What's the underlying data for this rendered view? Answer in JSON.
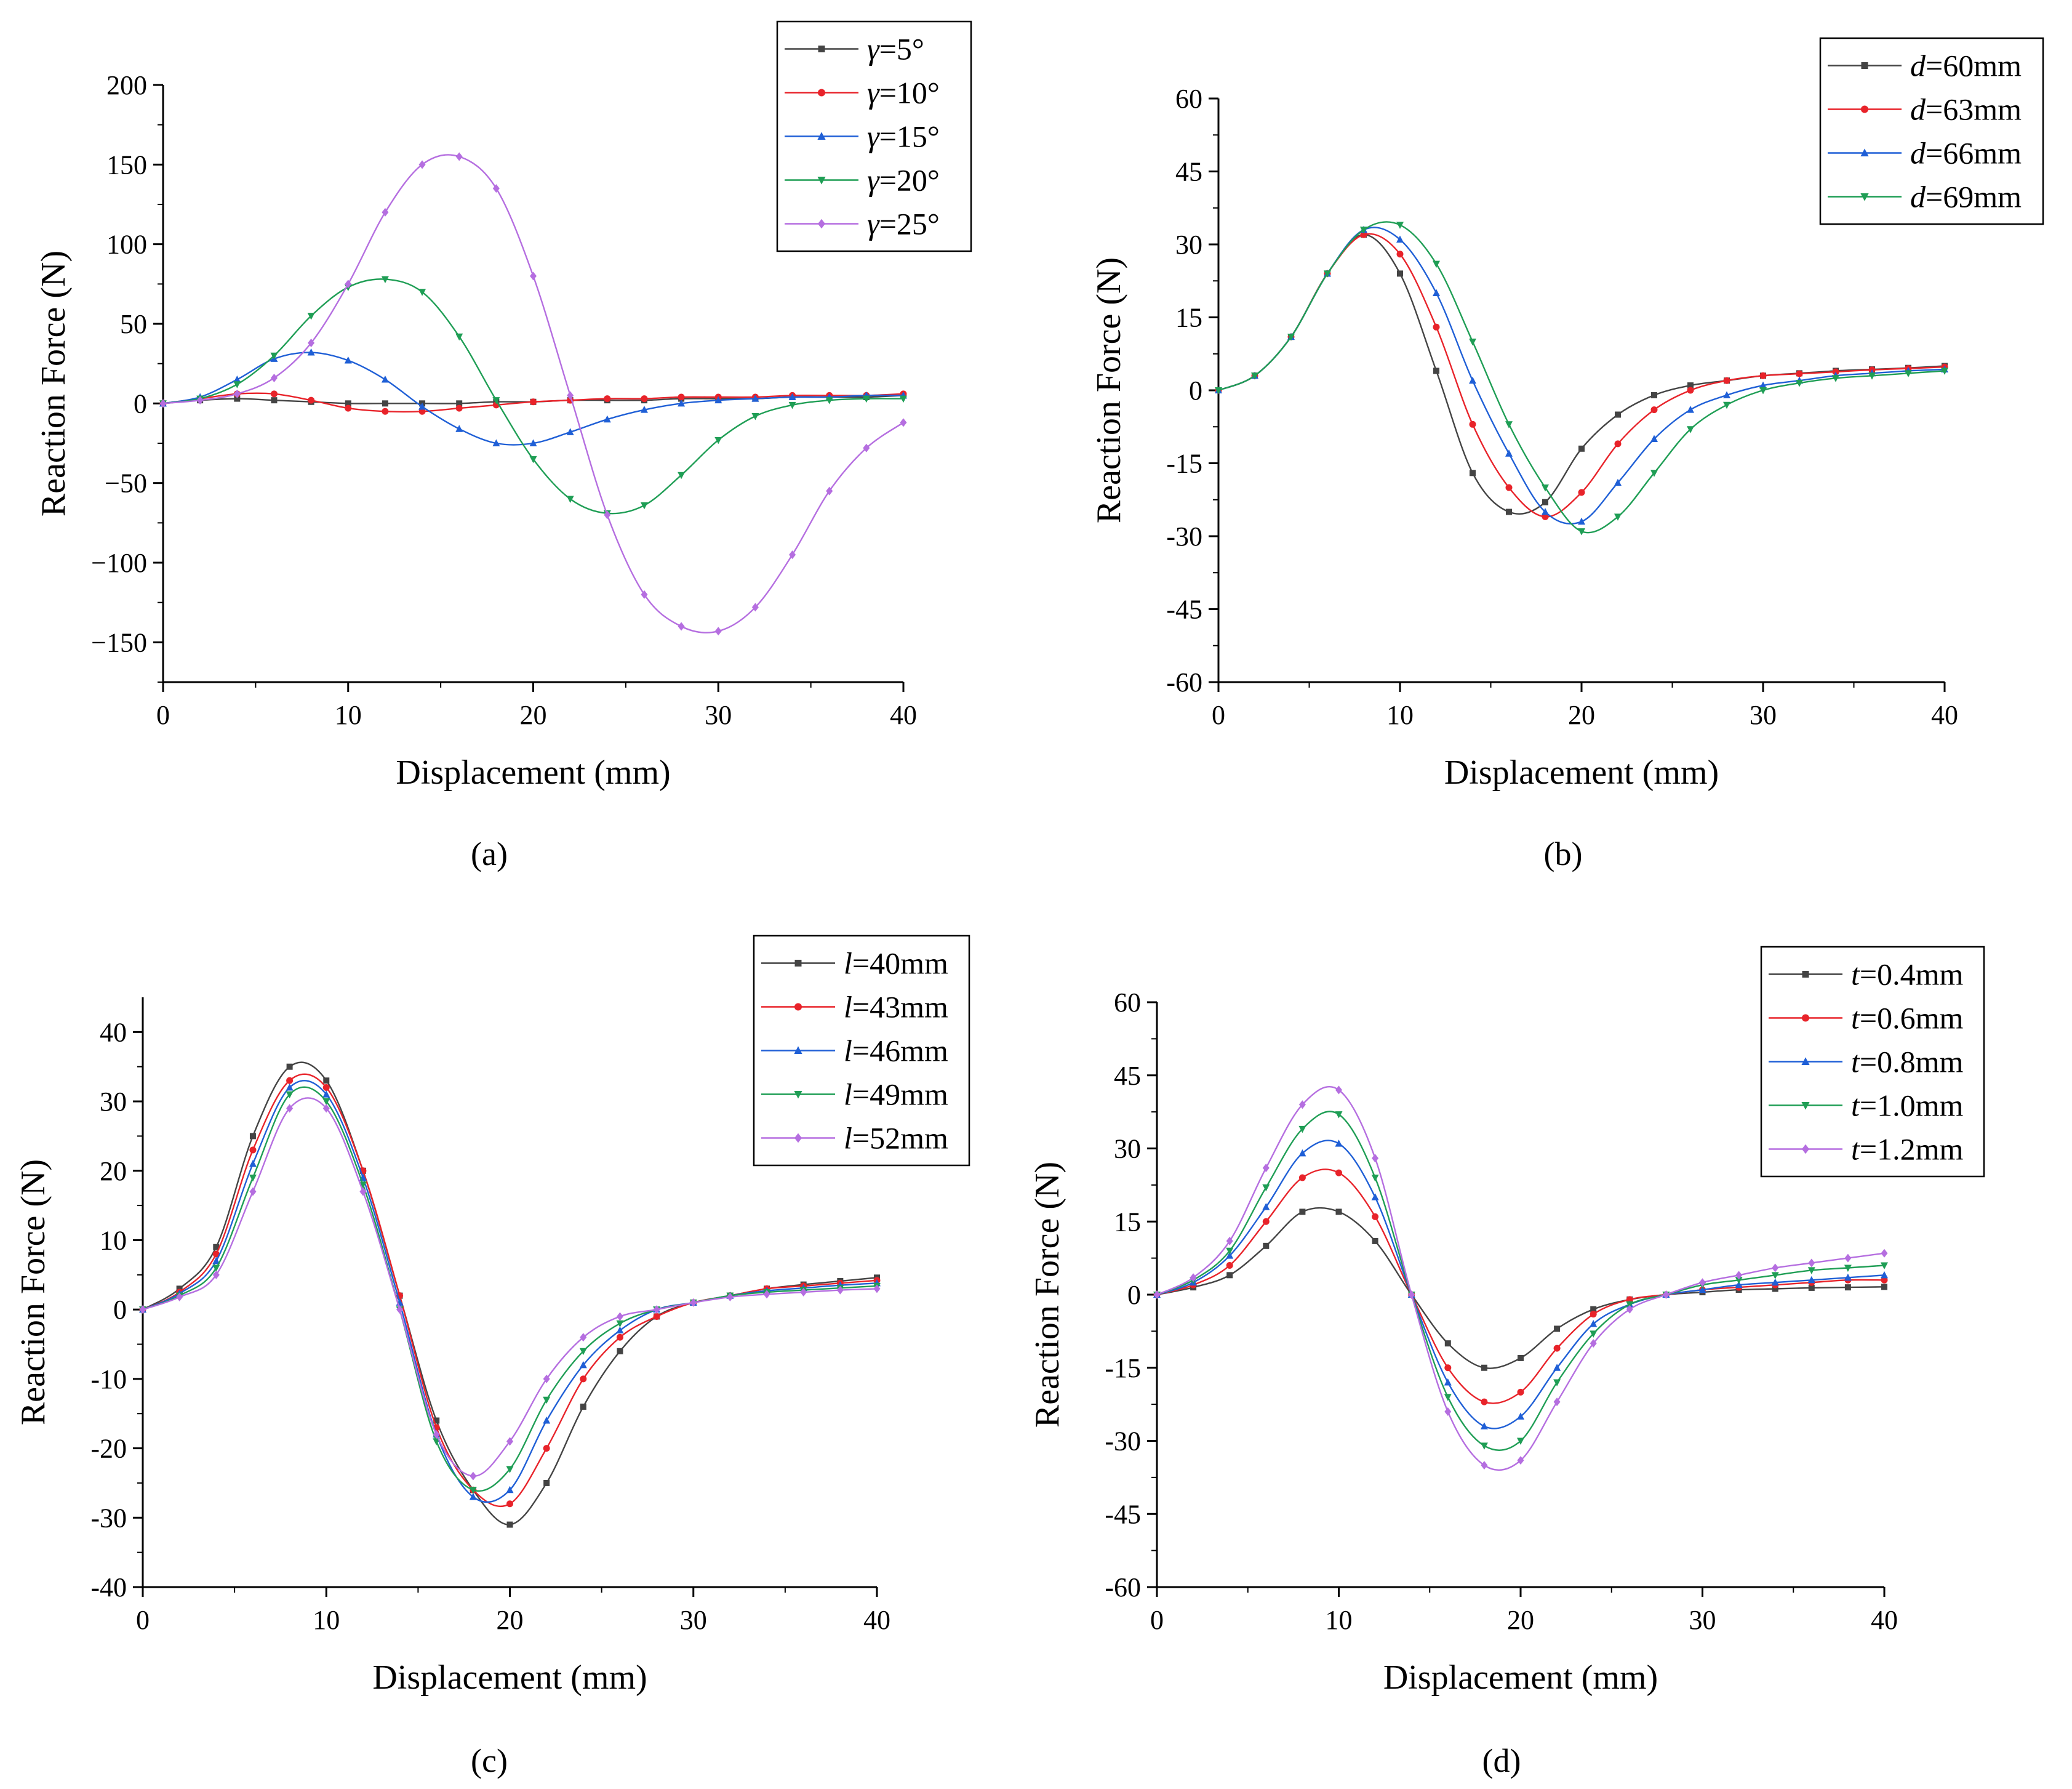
{
  "chart_data": [
    {
      "type": "line",
      "caption": "(a)",
      "xlabel": "Displacement (mm)",
      "ylabel": "Reaction Force (N)",
      "xlim": [
        0,
        40
      ],
      "ylim": [
        -175,
        200
      ],
      "xticks": [
        "0",
        "10",
        "20",
        "30",
        "40"
      ],
      "yticks": [
        "200",
        "150",
        "100",
        "50",
        "0",
        "−50",
        "−100",
        "−150"
      ],
      "ytick_values": [
        200,
        150,
        100,
        50,
        0,
        -50,
        -100,
        -150
      ],
      "legend_position": "top-right",
      "x": [
        0,
        2,
        4,
        6,
        8,
        10,
        12,
        14,
        16,
        18,
        20,
        22,
        24,
        26,
        28,
        30,
        32,
        34,
        36,
        38,
        40
      ],
      "series": [
        {
          "var": "γ",
          "value": "=5°",
          "color": "#444444",
          "marker": "square",
          "values": [
            0,
            2,
            3,
            2,
            1,
            0,
            0,
            0,
            0,
            1,
            1,
            2,
            2,
            2,
            3,
            3,
            3,
            4,
            4,
            4,
            5
          ]
        },
        {
          "var": "γ",
          "value": "=10°",
          "color": "#e8232a",
          "marker": "circle",
          "values": [
            0,
            3,
            6,
            6,
            2,
            -3,
            -5,
            -5,
            -3,
            -1,
            1,
            2,
            3,
            3,
            4,
            4,
            4,
            5,
            5,
            5,
            6
          ]
        },
        {
          "var": "γ",
          "value": "=15°",
          "color": "#1f5fd6",
          "marker": "triangle-up",
          "values": [
            0,
            4,
            15,
            28,
            32,
            27,
            15,
            -2,
            -16,
            -25,
            -25,
            -18,
            -10,
            -4,
            0,
            2,
            3,
            4,
            4,
            5,
            5
          ]
        },
        {
          "var": "γ",
          "value": "=20°",
          "color": "#1f9e55",
          "marker": "triangle-down",
          "values": [
            0,
            3,
            12,
            30,
            55,
            73,
            78,
            70,
            42,
            2,
            -35,
            -60,
            -69,
            -64,
            -45,
            -23,
            -8,
            -1,
            2,
            3,
            3
          ]
        },
        {
          "var": "γ",
          "value": "=25°",
          "color": "#b56ee0",
          "marker": "diamond",
          "values": [
            0,
            2,
            6,
            16,
            38,
            75,
            120,
            150,
            155,
            135,
            80,
            5,
            -70,
            -120,
            -140,
            -143,
            -128,
            -95,
            -55,
            -28,
            -12
          ]
        }
      ]
    },
    {
      "type": "line",
      "caption": "(b)",
      "xlabel": "Displacement (mm)",
      "ylabel": "Reaction Force (N)",
      "xlim": [
        0,
        40
      ],
      "ylim": [
        -60,
        60
      ],
      "xticks": [
        "0",
        "10",
        "20",
        "30",
        "40"
      ],
      "yticks": [
        "60",
        "45",
        "30",
        "15",
        "0",
        "-15",
        "-30",
        "-45",
        "-60"
      ],
      "ytick_values": [
        60,
        45,
        30,
        15,
        0,
        -15,
        -30,
        -45,
        -60
      ],
      "legend_position": "top-right",
      "x": [
        0,
        2,
        4,
        6,
        8,
        10,
        12,
        14,
        16,
        18,
        20,
        22,
        24,
        26,
        28,
        30,
        32,
        34,
        36,
        38,
        40
      ],
      "series": [
        {
          "var": "d",
          "value": "=60mm",
          "color": "#444444",
          "marker": "square",
          "values": [
            0,
            3,
            11,
            24,
            32,
            24,
            4,
            -17,
            -25,
            -23,
            -12,
            -5,
            -1,
            1,
            2,
            3,
            3.5,
            4,
            4.3,
            4.6,
            5
          ]
        },
        {
          "var": "d",
          "value": "=63mm",
          "color": "#e8232a",
          "marker": "circle",
          "values": [
            0,
            3,
            11,
            24,
            32,
            28,
            13,
            -7,
            -20,
            -26,
            -21,
            -11,
            -4,
            0,
            2,
            3,
            3.4,
            3.8,
            4.2,
            4.5,
            4.8
          ]
        },
        {
          "var": "d",
          "value": "=66mm",
          "color": "#1f5fd6",
          "marker": "triangle-up",
          "values": [
            0,
            3,
            11,
            24,
            33,
            31,
            20,
            2,
            -13,
            -25,
            -27,
            -19,
            -10,
            -4,
            -1,
            1,
            2,
            3,
            3.5,
            4,
            4.3
          ]
        },
        {
          "var": "d",
          "value": "=69mm",
          "color": "#1f9e55",
          "marker": "triangle-down",
          "values": [
            0,
            3,
            11,
            24,
            33,
            34,
            26,
            10,
            -7,
            -20,
            -29,
            -26,
            -17,
            -8,
            -3,
            0,
            1.5,
            2.5,
            3,
            3.5,
            4
          ]
        }
      ]
    },
    {
      "type": "line",
      "caption": "(c)",
      "xlabel": "Displacement (mm)",
      "ylabel": "Reaction Force (N)",
      "xlim": [
        0,
        40
      ],
      "ylim": [
        -40,
        45
      ],
      "xticks": [
        "0",
        "10",
        "20",
        "30",
        "40"
      ],
      "yticks": [
        "40",
        "30",
        "20",
        "10",
        "0",
        "-10",
        "-20",
        "-30",
        "-40"
      ],
      "ytick_values": [
        40,
        30,
        20,
        10,
        0,
        -10,
        -20,
        -30,
        -40
      ],
      "legend_position": "top-right",
      "x": [
        0,
        2,
        4,
        6,
        8,
        10,
        12,
        14,
        16,
        18,
        20,
        22,
        24,
        26,
        28,
        30,
        32,
        34,
        36,
        38,
        40
      ],
      "series": [
        {
          "var": "l",
          "value": "=40mm",
          "color": "#444444",
          "marker": "square",
          "values": [
            0,
            3,
            9,
            25,
            35,
            33,
            20,
            2,
            -16,
            -26,
            -31,
            -25,
            -14,
            -6,
            -1,
            1,
            2,
            3,
            3.6,
            4.1,
            4.6
          ]
        },
        {
          "var": "l",
          "value": "=43mm",
          "color": "#e8232a",
          "marker": "circle",
          "values": [
            0,
            2.5,
            8,
            23,
            33,
            32,
            20,
            2,
            -17,
            -26,
            -28,
            -20,
            -10,
            -4,
            -1,
            1,
            2,
            3,
            3.4,
            3.8,
            4.2
          ]
        },
        {
          "var": "l",
          "value": "=46mm",
          "color": "#1f5fd6",
          "marker": "triangle-up",
          "values": [
            0,
            2.3,
            7,
            21,
            32,
            31,
            19,
            1,
            -18,
            -27,
            -26,
            -16,
            -8,
            -3,
            0,
            1,
            2,
            2.7,
            3.1,
            3.5,
            3.8
          ]
        },
        {
          "var": "l",
          "value": "=49mm",
          "color": "#1f9e55",
          "marker": "triangle-down",
          "values": [
            0,
            2,
            6,
            19,
            31,
            30,
            18,
            0,
            -19,
            -26,
            -23,
            -13,
            -6,
            -2,
            0,
            1,
            2,
            2.5,
            2.8,
            3.1,
            3.4
          ]
        },
        {
          "var": "l",
          "value": "=52mm",
          "color": "#b56ee0",
          "marker": "diamond",
          "values": [
            0,
            1.8,
            5,
            17,
            29,
            29,
            17,
            0,
            -18,
            -24,
            -19,
            -10,
            -4,
            -1,
            0,
            1,
            1.8,
            2.2,
            2.5,
            2.8,
            3
          ]
        }
      ]
    },
    {
      "type": "line",
      "caption": "(d)",
      "xlabel": "Displacement (mm)",
      "ylabel": "Reaction Force (N)",
      "xlim": [
        0,
        40
      ],
      "ylim": [
        -60,
        60
      ],
      "xticks": [
        "0",
        "10",
        "20",
        "30",
        "40"
      ],
      "yticks": [
        "60",
        "45",
        "30",
        "15",
        "0",
        "-15",
        "-30",
        "-45",
        "-60"
      ],
      "ytick_values": [
        60,
        45,
        30,
        15,
        0,
        -15,
        -30,
        -45,
        -60
      ],
      "legend_position": "top-right",
      "x": [
        0,
        2,
        4,
        6,
        8,
        10,
        12,
        14,
        16,
        18,
        20,
        22,
        24,
        26,
        28,
        30,
        32,
        34,
        36,
        38,
        40
      ],
      "series": [
        {
          "var": "t",
          "value": "=0.4mm",
          "color": "#444444",
          "marker": "square",
          "values": [
            0,
            1.5,
            4,
            10,
            17,
            17,
            11,
            0,
            -10,
            -15,
            -13,
            -7,
            -3,
            -1,
            0,
            0.5,
            1,
            1.2,
            1.4,
            1.5,
            1.6
          ]
        },
        {
          "var": "t",
          "value": "=0.6mm",
          "color": "#e8232a",
          "marker": "circle",
          "values": [
            0,
            2,
            6,
            15,
            24,
            25,
            16,
            0,
            -15,
            -22,
            -20,
            -11,
            -4,
            -1,
            0,
            1,
            1.5,
            2,
            2.5,
            3,
            3
          ]
        },
        {
          "var": "t",
          "value": "=0.8mm",
          "color": "#1f5fd6",
          "marker": "triangle-up",
          "values": [
            0,
            2.5,
            8,
            18,
            29,
            31,
            20,
            0,
            -18,
            -27,
            -25,
            -15,
            -6,
            -2,
            0,
            1,
            2,
            2.5,
            3,
            3.5,
            4
          ]
        },
        {
          "var": "t",
          "value": "=1.0mm",
          "color": "#1f9e55",
          "marker": "triangle-down",
          "values": [
            0,
            3,
            9,
            22,
            34,
            37,
            24,
            0,
            -21,
            -31,
            -30,
            -18,
            -8,
            -2,
            0,
            2,
            3,
            4,
            5,
            5.5,
            6
          ]
        },
        {
          "var": "t",
          "value": "=1.2mm",
          "color": "#b56ee0",
          "marker": "diamond",
          "values": [
            0,
            3.5,
            11,
            26,
            39,
            42,
            28,
            0,
            -24,
            -35,
            -34,
            -22,
            -10,
            -3,
            0,
            2.5,
            4,
            5.5,
            6.5,
            7.5,
            8.5
          ]
        }
      ]
    }
  ]
}
